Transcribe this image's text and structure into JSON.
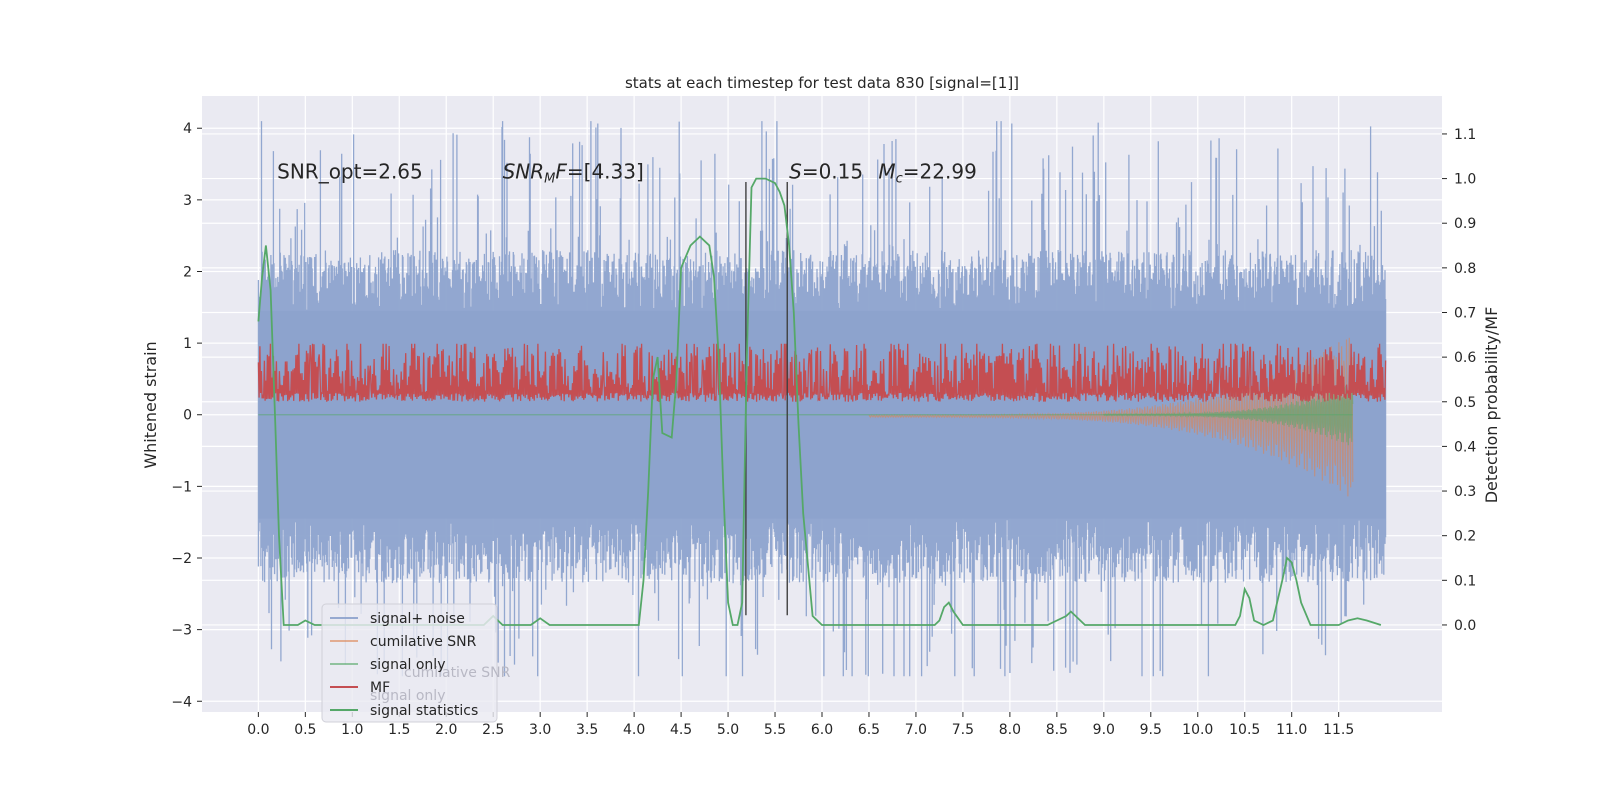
{
  "chart_data": {
    "type": "line",
    "title": "stats at each timestep for test data 830 [signal=[1]]",
    "xlabel": "",
    "ylabel": "Whitened strain",
    "y2label": "Detection probability/MF",
    "xlim": [
      -0.6,
      12.6
    ],
    "ylim": [
      -4.15,
      4.45
    ],
    "y2lim": [
      -0.195,
      1.185
    ],
    "x_ticks": [
      0.0,
      0.5,
      1.0,
      1.5,
      2.0,
      2.5,
      3.0,
      3.5,
      4.0,
      4.5,
      5.0,
      5.5,
      6.0,
      6.5,
      7.0,
      7.5,
      8.0,
      8.5,
      9.0,
      9.5,
      10.0,
      10.5,
      11.0,
      11.5
    ],
    "x_tick_labels": [
      "0.0",
      "0.5",
      "1.0",
      "1.5",
      "2.0",
      "2.5",
      "3.0",
      "3.5",
      "4.0",
      "4.5",
      "5.0",
      "5.5",
      "6.0",
      "6.5",
      "7.0",
      "7.5",
      "8.0",
      "8.5",
      "9.0",
      "9.5",
      "10.0",
      "10.5",
      "11.0",
      "11.5"
    ],
    "y_ticks": [
      -4,
      -3,
      -2,
      -1,
      0,
      1,
      2,
      3,
      4
    ],
    "y_tick_labels": [
      "−4",
      "−3",
      "−2",
      "−1",
      "0",
      "1",
      "2",
      "3",
      "4"
    ],
    "y2_ticks": [
      0.0,
      0.1,
      0.2,
      0.3,
      0.4,
      0.5,
      0.6,
      0.7,
      0.8,
      0.9,
      1.0,
      1.1
    ],
    "y2_tick_labels": [
      "0.0",
      "0.1",
      "0.2",
      "0.3",
      "0.4",
      "0.5",
      "0.6",
      "0.7",
      "0.8",
      "0.9",
      "1.0",
      "1.1"
    ],
    "annotations": [
      {
        "label": "snr-opt",
        "text": "SNR_opt=2.65",
        "x": 0.2,
        "y": 3.3
      },
      {
        "label": "snr-mf",
        "text": "SNR_MF=[4.33]",
        "x": 2.6,
        "y": 3.3
      },
      {
        "label": "s-value",
        "text": "S=0.15",
        "x": 5.65,
        "y": 3.3
      },
      {
        "label": "chirp-mass",
        "text": "Mc=22.99",
        "x": 6.6,
        "y": 3.3
      }
    ],
    "vlines": [
      {
        "x": 5.19,
        "y_range": [
          -2.8,
          3.25
        ]
      },
      {
        "x": 5.63,
        "y_range": [
          -2.8,
          3.25
        ]
      }
    ],
    "series": [
      {
        "name": "signal+ noise",
        "color": "#8da3cd",
        "kind": "noise",
        "x_range": [
          0.0,
          12.0
        ],
        "envelope": 1.45,
        "peak_max": 4.1,
        "trough_min": -3.65
      },
      {
        "name": "cumilative SNR",
        "color": "#dd8452",
        "kind": "chirp",
        "x_range": [
          6.5,
          11.65
        ],
        "axis": "left"
      },
      {
        "name": "signal only",
        "color": "#55a868",
        "kind": "chirp",
        "x_range": [
          9.0,
          11.65
        ],
        "axis": "left"
      },
      {
        "name": "MF",
        "color": "#c44e52",
        "kind": "noise",
        "x_range": [
          0.0,
          12.0
        ],
        "axis": "right",
        "baseline": 0.5,
        "peak_max": 0.63
      },
      {
        "name": "signal statistics",
        "color": "#55a868",
        "axis": "right",
        "x": [
          0.0,
          0.04,
          0.08,
          0.13,
          0.18,
          0.22,
          0.27,
          0.32,
          0.37,
          0.42,
          0.5,
          0.6,
          0.75,
          0.9,
          1.1,
          1.4,
          1.6,
          1.8,
          2.0,
          2.2,
          2.4,
          2.5,
          2.6,
          2.75,
          2.9,
          3.0,
          3.1,
          3.3,
          3.6,
          3.9,
          4.05,
          4.1,
          4.15,
          4.2,
          4.25,
          4.3,
          4.4,
          4.45,
          4.5,
          4.6,
          4.7,
          4.8,
          4.85,
          4.9,
          4.95,
          5.0,
          5.05,
          5.1,
          5.15,
          5.2,
          5.25,
          5.3,
          5.4,
          5.5,
          5.55,
          5.6,
          5.65,
          5.7,
          5.75,
          5.8,
          5.9,
          6.0,
          6.2,
          6.5,
          6.8,
          7.0,
          7.2,
          7.25,
          7.3,
          7.35,
          7.4,
          7.5,
          7.7,
          8.0,
          8.4,
          8.6,
          8.65,
          8.7,
          8.8,
          9.0,
          9.5,
          10.0,
          10.3,
          10.4,
          10.45,
          10.5,
          10.55,
          10.6,
          10.7,
          10.8,
          10.9,
          10.95,
          11.0,
          11.05,
          11.1,
          11.2,
          11.3,
          11.5,
          11.6,
          11.7,
          11.8,
          11.95
        ],
        "values": [
          0.68,
          0.78,
          0.85,
          0.75,
          0.45,
          0.2,
          0.0,
          0.0,
          0.0,
          0.0,
          0.01,
          0.0,
          0.0,
          0.0,
          0.0,
          0.0,
          0.0,
          0.0,
          0.0,
          0.0,
          0.0,
          0.02,
          0.0,
          0.0,
          0.0,
          0.015,
          0.0,
          0.0,
          0.0,
          0.0,
          0.0,
          0.1,
          0.3,
          0.55,
          0.6,
          0.43,
          0.42,
          0.55,
          0.8,
          0.85,
          0.87,
          0.85,
          0.78,
          0.6,
          0.3,
          0.05,
          0.0,
          0.0,
          0.05,
          0.6,
          0.98,
          1.0,
          1.0,
          0.99,
          0.97,
          0.94,
          0.85,
          0.7,
          0.45,
          0.25,
          0.02,
          0.0,
          0.0,
          0.0,
          0.0,
          0.0,
          0.0,
          0.01,
          0.04,
          0.05,
          0.03,
          0.0,
          0.0,
          0.0,
          0.0,
          0.02,
          0.03,
          0.02,
          0.0,
          0.0,
          0.0,
          0.0,
          0.0,
          0.0,
          0.02,
          0.08,
          0.06,
          0.01,
          0.0,
          0.01,
          0.1,
          0.15,
          0.14,
          0.1,
          0.05,
          0.0,
          0.0,
          0.0,
          0.01,
          0.015,
          0.01,
          0.0
        ]
      }
    ],
    "legend": {
      "position": "lower-left",
      "entries": [
        "signal+ noise",
        "cumilative SNR",
        "signal only",
        "MF",
        "signal statistics"
      ],
      "ghost_text": [
        "cumilative SNR",
        "signal only"
      ]
    },
    "grid": true,
    "colors": {
      "panel_bg": "#eaeaf2",
      "grid": "#ffffff",
      "text": "#262626",
      "vline": "#404040"
    }
  }
}
